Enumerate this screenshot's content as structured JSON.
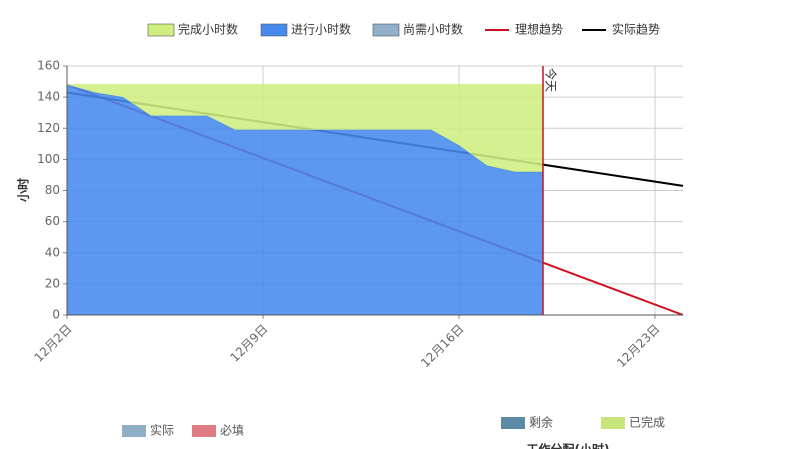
{
  "chart_data": {
    "type": "burndown",
    "y_label": "小时",
    "xlim": [
      2,
      24
    ],
    "ylim": [
      0,
      160
    ],
    "xticks": [
      {
        "value": 2,
        "label": "12月2日"
      },
      {
        "value": 9,
        "label": "12月9日"
      },
      {
        "value": 16,
        "label": "12月16日"
      },
      {
        "value": 23,
        "label": "12月23日"
      }
    ],
    "yticks": [
      0,
      20,
      40,
      60,
      80,
      100,
      120,
      140,
      160
    ],
    "grid": true,
    "x": [
      2,
      3,
      4,
      5,
      6,
      7,
      8,
      9,
      10,
      11,
      12,
      13,
      14,
      15,
      16,
      17,
      18,
      19
    ],
    "series": [
      {
        "name": "完成小时数",
        "kind": "area",
        "color": "#cfee80",
        "values": [
          0,
          5,
          8,
          20,
          20,
          20,
          29,
          29,
          29,
          29,
          29,
          29,
          29,
          29,
          39,
          52,
          56,
          56
        ]
      },
      {
        "name": "进行小时数",
        "kind": "area",
        "color": "#4689ee",
        "values": [
          148,
          143,
          140,
          128,
          128,
          128,
          119,
          119,
          119,
          119,
          119,
          119,
          119,
          119,
          109,
          96,
          92,
          92
        ]
      },
      {
        "name": "尚需小时数",
        "kind": "area",
        "color": "#8fb0c8",
        "values": [
          0,
          0,
          0,
          0,
          0,
          0,
          0,
          0,
          0,
          0,
          0,
          0,
          0,
          0,
          0,
          0,
          0,
          0
        ]
      },
      {
        "name": "理想趋势",
        "kind": "line",
        "color": "#cc1122",
        "x": [
          2,
          24
        ],
        "values": [
          148,
          0
        ]
      },
      {
        "name": "实际趋势",
        "kind": "line",
        "color": "#000000",
        "x": [
          2,
          24
        ],
        "values": [
          143,
          83
        ]
      }
    ],
    "today": {
      "x": 19,
      "label": "今天",
      "color": "#cc1122"
    }
  },
  "bottom_legends": [
    {
      "items": [
        {
          "name": "实际",
          "color": "#8fafc6"
        },
        {
          "name": "必填",
          "color": "#e07b84"
        }
      ]
    },
    {
      "items": [
        {
          "name": "剩余",
          "color": "#5a8aa6"
        },
        {
          "name": "已完成",
          "color": "#c6e57a"
        }
      ],
      "title": "工作分配(小时)"
    }
  ]
}
